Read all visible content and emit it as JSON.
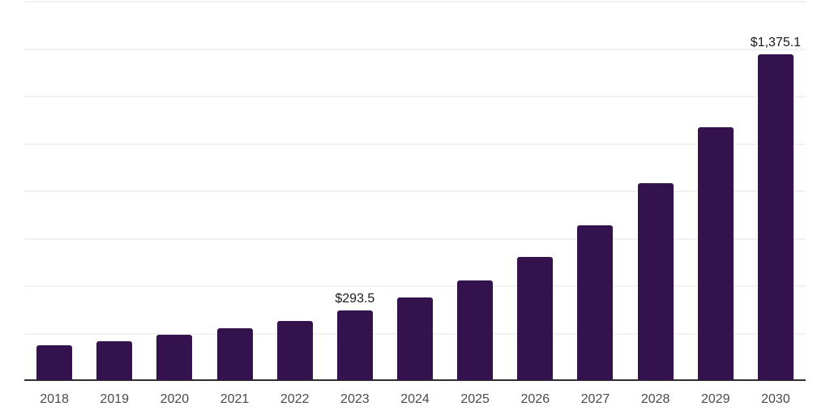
{
  "chart_data": {
    "type": "bar",
    "title": "",
    "xlabel": "",
    "ylabel": "",
    "categories": [
      "2018",
      "2019",
      "2020",
      "2021",
      "2022",
      "2023",
      "2024",
      "2025",
      "2026",
      "2027",
      "2028",
      "2029",
      "2030"
    ],
    "values": [
      147.1,
      164.2,
      191.6,
      218.9,
      249.7,
      293.5,
      348.9,
      420.7,
      519.9,
      653.3,
      831.2,
      1067.2,
      1375.1
    ],
    "point_labels": [
      "",
      "",
      "",
      "",
      "",
      "$293.5",
      "",
      "",
      "",
      "",
      "",
      "",
      "$1,375.1"
    ],
    "ylim": [
      0,
      1600
    ],
    "gridline_step": 200,
    "grid": true,
    "legend": false,
    "colors": {
      "bar": "#34124e",
      "gridline": "#f2f2f2",
      "axis": "#2e2e2e",
      "data_label": "#1a1a1a",
      "tick_label": "#4a4a4a",
      "background": "#ffffff"
    }
  }
}
